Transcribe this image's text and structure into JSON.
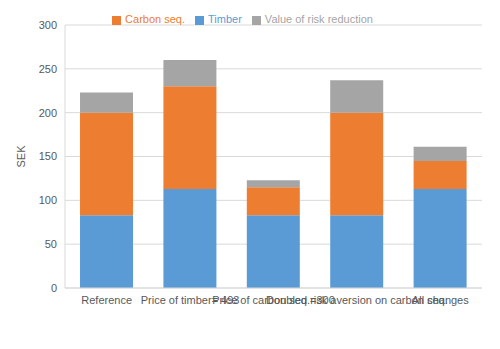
{
  "chart_data": {
    "type": "bar",
    "stacked": true,
    "categories": [
      "Reference",
      "Price of timber= 493",
      "Price of carbon seq.=300",
      "Doubled risk aversion on carbon seq.",
      "All changes"
    ],
    "series": [
      {
        "name": "Timber",
        "color": "#5B9BD5",
        "values": [
          83,
          113,
          83,
          83,
          113
        ]
      },
      {
        "name": "Carbon seq.",
        "color": "#ED7D31",
        "values": [
          117,
          117,
          32,
          117,
          32
        ]
      },
      {
        "name": "Value of risk reduction",
        "color": "#A5A5A5",
        "values": [
          23,
          30,
          8,
          37,
          16
        ]
      }
    ],
    "y_label": "SEK",
    "ylim": [
      0,
      300
    ],
    "yticks": [
      0,
      50,
      100,
      150,
      200,
      250,
      300
    ],
    "grid": true,
    "legend": "top"
  }
}
